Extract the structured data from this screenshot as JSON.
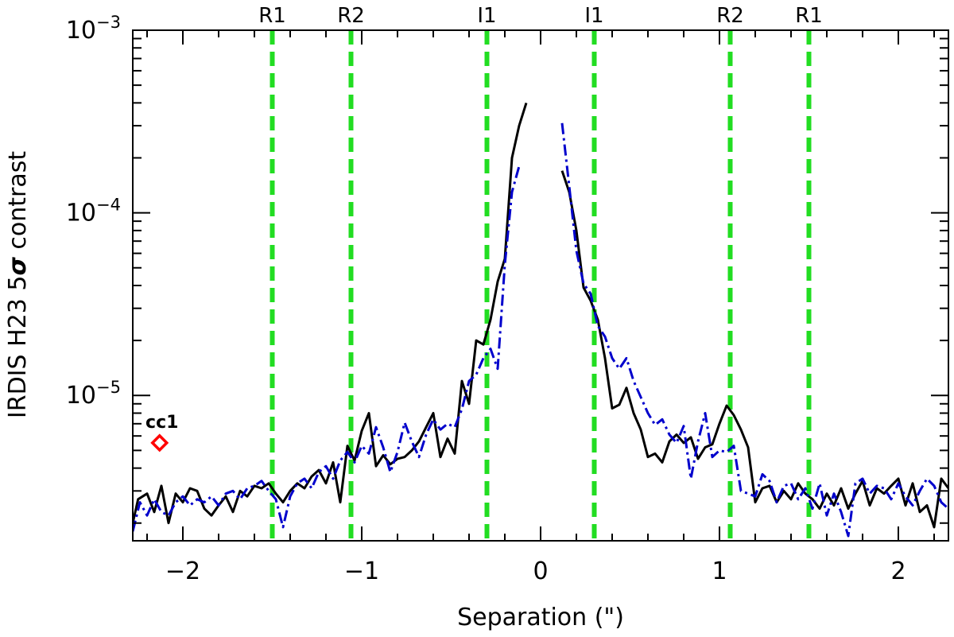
{
  "chart_data": {
    "type": "line",
    "title": "",
    "xlabel": "Separation (\")",
    "ylabel_parts": {
      "before": "IRDIS H23 5",
      "sigma": "σ",
      "after": " contrast"
    },
    "xlim": [
      -2.28,
      2.28
    ],
    "ylim": [
      1.6e-06,
      0.001
    ],
    "yscale": "log",
    "x_ticks": [
      -2,
      -1,
      0,
      1,
      2
    ],
    "x_tick_labels": [
      "−2",
      "−1",
      "0",
      "1",
      "2"
    ],
    "y_ticks": [
      {
        "value": 1e-05,
        "base": "10",
        "exp": "−5"
      },
      {
        "value": 0.0001,
        "base": "10",
        "exp": "−4"
      },
      {
        "value": 0.001,
        "base": "10",
        "exp": "−3"
      }
    ],
    "vertical_lines": [
      {
        "x": -1.5,
        "label": "R1"
      },
      {
        "x": -1.06,
        "label": "R2"
      },
      {
        "x": -0.3,
        "label": "I1"
      },
      {
        "x": 0.3,
        "label": "I1"
      },
      {
        "x": 1.06,
        "label": "R2"
      },
      {
        "x": 1.5,
        "label": "R1"
      }
    ],
    "vline_color": "#22dd22",
    "series": [
      {
        "style": "solid",
        "color": "#000000",
        "segments": [
          [
            [
              -2.28,
              2e-06
            ],
            [
              -2.25,
              2.7e-06
            ],
            [
              -2.2,
              2.9e-06
            ],
            [
              -2.16,
              2.3e-06
            ],
            [
              -2.12,
              3.2e-06
            ],
            [
              -2.08,
              2e-06
            ],
            [
              -2.04,
              2.9e-06
            ],
            [
              -2.0,
              2.6e-06
            ],
            [
              -1.96,
              3.1e-06
            ],
            [
              -1.92,
              3e-06
            ],
            [
              -1.88,
              2.4e-06
            ],
            [
              -1.84,
              2.2e-06
            ],
            [
              -1.8,
              2.5e-06
            ],
            [
              -1.76,
              2.8e-06
            ],
            [
              -1.72,
              2.3e-06
            ],
            [
              -1.68,
              3e-06
            ],
            [
              -1.64,
              2.8e-06
            ],
            [
              -1.6,
              3.2e-06
            ],
            [
              -1.56,
              3.1e-06
            ],
            [
              -1.52,
              3.3e-06
            ],
            [
              -1.48,
              2.9e-06
            ],
            [
              -1.44,
              2.6e-06
            ],
            [
              -1.4,
              3e-06
            ],
            [
              -1.36,
              3.3e-06
            ],
            [
              -1.32,
              3.1e-06
            ],
            [
              -1.28,
              3.6e-06
            ],
            [
              -1.24,
              3.9e-06
            ],
            [
              -1.2,
              3.3e-06
            ],
            [
              -1.16,
              4.3e-06
            ],
            [
              -1.12,
              2.6e-06
            ],
            [
              -1.08,
              5.3e-06
            ],
            [
              -1.04,
              4.4e-06
            ],
            [
              -1.0,
              6.4e-06
            ],
            [
              -0.96,
              8e-06
            ],
            [
              -0.92,
              4.1e-06
            ],
            [
              -0.88,
              4.7e-06
            ],
            [
              -0.84,
              4.2e-06
            ],
            [
              -0.8,
              4.5e-06
            ],
            [
              -0.76,
              4.6e-06
            ],
            [
              -0.72,
              5e-06
            ],
            [
              -0.68,
              5.6e-06
            ],
            [
              -0.64,
              6.7e-06
            ],
            [
              -0.6,
              8e-06
            ],
            [
              -0.56,
              4.6e-06
            ],
            [
              -0.52,
              5.8e-06
            ],
            [
              -0.48,
              4.8e-06
            ],
            [
              -0.44,
              1.2e-05
            ],
            [
              -0.4,
              9e-06
            ],
            [
              -0.36,
              2e-05
            ],
            [
              -0.32,
              1.9e-05
            ],
            [
              -0.28,
              2.6e-05
            ],
            [
              -0.24,
              4.2e-05
            ],
            [
              -0.2,
              5.6e-05
            ],
            [
              -0.16,
              0.0002
            ],
            [
              -0.12,
              0.0003
            ],
            [
              -0.08,
              0.0004
            ]
          ],
          [
            [
              0.12,
              0.00017
            ],
            [
              0.16,
              0.00013
            ],
            [
              0.2,
              8e-05
            ],
            [
              0.24,
              3.9e-05
            ],
            [
              0.28,
              3.3e-05
            ],
            [
              0.32,
              2.6e-05
            ],
            [
              0.36,
              1.6e-05
            ],
            [
              0.4,
              8.5e-06
            ],
            [
              0.44,
              8.9e-06
            ],
            [
              0.48,
              1.1e-05
            ],
            [
              0.52,
              8e-06
            ],
            [
              0.56,
              6.5e-06
            ],
            [
              0.6,
              4.6e-06
            ],
            [
              0.64,
              4.8e-06
            ],
            [
              0.68,
              4.3e-06
            ],
            [
              0.72,
              5.6e-06
            ],
            [
              0.76,
              6.1e-06
            ],
            [
              0.8,
              5.5e-06
            ],
            [
              0.84,
              5.9e-06
            ],
            [
              0.88,
              4.5e-06
            ],
            [
              0.92,
              5.2e-06
            ],
            [
              0.96,
              5.4e-06
            ],
            [
              1.0,
              7e-06
            ],
            [
              1.04,
              8.8e-06
            ],
            [
              1.08,
              7.8e-06
            ],
            [
              1.12,
              6.5e-06
            ],
            [
              1.16,
              5.2e-06
            ],
            [
              1.2,
              2.6e-06
            ],
            [
              1.24,
              3.1e-06
            ],
            [
              1.28,
              3.2e-06
            ],
            [
              1.32,
              2.6e-06
            ],
            [
              1.36,
              3e-06
            ],
            [
              1.4,
              2.7e-06
            ],
            [
              1.44,
              3.3e-06
            ],
            [
              1.48,
              2.9e-06
            ],
            [
              1.52,
              2.7e-06
            ],
            [
              1.56,
              2.4e-06
            ],
            [
              1.6,
              2.9e-06
            ],
            [
              1.64,
              2.5e-06
            ],
            [
              1.68,
              3.1e-06
            ],
            [
              1.72,
              2.4e-06
            ],
            [
              1.76,
              2.9e-06
            ],
            [
              1.8,
              3.4e-06
            ],
            [
              1.84,
              2.5e-06
            ],
            [
              1.88,
              3.1e-06
            ],
            [
              1.92,
              2.9e-06
            ],
            [
              1.96,
              3.2e-06
            ],
            [
              2.0,
              3.5e-06
            ],
            [
              2.04,
              2.5e-06
            ],
            [
              2.08,
              3.3e-06
            ],
            [
              2.12,
              2.3e-06
            ],
            [
              2.16,
              2.5e-06
            ],
            [
              2.2,
              1.9e-06
            ],
            [
              2.24,
              3.5e-06
            ],
            [
              2.28,
              3.1e-06
            ]
          ]
        ]
      },
      {
        "style": "dashdot",
        "color": "#0000cc",
        "segments": [
          [
            [
              -2.28,
              1.8e-06
            ],
            [
              -2.24,
              2.6e-06
            ],
            [
              -2.2,
              2.2e-06
            ],
            [
              -2.16,
              2.7e-06
            ],
            [
              -2.12,
              2.3e-06
            ],
            [
              -2.08,
              2.2e-06
            ],
            [
              -2.04,
              2.6e-06
            ],
            [
              -2.0,
              2.8e-06
            ],
            [
              -1.96,
              2.5e-06
            ],
            [
              -1.92,
              2.7e-06
            ],
            [
              -1.88,
              2.6e-06
            ],
            [
              -1.84,
              2.8e-06
            ],
            [
              -1.8,
              2.5e-06
            ],
            [
              -1.76,
              2.9e-06
            ],
            [
              -1.72,
              3e-06
            ],
            [
              -1.68,
              2.7e-06
            ],
            [
              -1.64,
              3.1e-06
            ],
            [
              -1.6,
              3.2e-06
            ],
            [
              -1.56,
              3.4e-06
            ],
            [
              -1.52,
              3e-06
            ],
            [
              -1.48,
              2.7e-06
            ],
            [
              -1.44,
              1.9e-06
            ],
            [
              -1.4,
              2.8e-06
            ],
            [
              -1.36,
              3.3e-06
            ],
            [
              -1.32,
              3.5e-06
            ],
            [
              -1.28,
              3.1e-06
            ],
            [
              -1.24,
              3.8e-06
            ],
            [
              -1.2,
              4.1e-06
            ],
            [
              -1.16,
              3.5e-06
            ],
            [
              -1.12,
              4.4e-06
            ],
            [
              -1.08,
              4.9e-06
            ],
            [
              -1.04,
              4.3e-06
            ],
            [
              -1.0,
              5.3e-06
            ],
            [
              -0.96,
              4.8e-06
            ],
            [
              -0.92,
              6.7e-06
            ],
            [
              -0.88,
              5.2e-06
            ],
            [
              -0.84,
              3.8e-06
            ],
            [
              -0.8,
              4.9e-06
            ],
            [
              -0.76,
              7.1e-06
            ],
            [
              -0.72,
              5.6e-06
            ],
            [
              -0.68,
              4.6e-06
            ],
            [
              -0.64,
              6.1e-06
            ],
            [
              -0.6,
              7.4e-06
            ],
            [
              -0.56,
              6.5e-06
            ],
            [
              -0.52,
              7e-06
            ],
            [
              -0.48,
              6.7e-06
            ],
            [
              -0.44,
              8.4e-06
            ],
            [
              -0.4,
              1.2e-05
            ],
            [
              -0.36,
              1.3e-05
            ],
            [
              -0.32,
              1.6e-05
            ],
            [
              -0.28,
              1.8e-05
            ],
            [
              -0.24,
              1.4e-05
            ],
            [
              -0.2,
              5.2e-05
            ],
            [
              -0.16,
              0.00013
            ],
            [
              -0.12,
              0.00018
            ]
          ],
          [
            [
              0.12,
              0.00031
            ],
            [
              0.16,
              0.00014
            ],
            [
              0.2,
              6.2e-05
            ],
            [
              0.24,
              4.1e-05
            ],
            [
              0.28,
              3.6e-05
            ],
            [
              0.32,
              2.4e-05
            ],
            [
              0.36,
              2.1e-05
            ],
            [
              0.4,
              1.6e-05
            ],
            [
              0.44,
              1.4e-05
            ],
            [
              0.48,
              1.6e-05
            ],
            [
              0.52,
              1.2e-05
            ],
            [
              0.56,
              9.8e-06
            ],
            [
              0.6,
              8e-06
            ],
            [
              0.64,
              6.9e-06
            ],
            [
              0.68,
              7.4e-06
            ],
            [
              0.72,
              6.1e-06
            ],
            [
              0.76,
              5.5e-06
            ],
            [
              0.8,
              6.8e-06
            ],
            [
              0.84,
              3.5e-06
            ],
            [
              0.88,
              5.6e-06
            ],
            [
              0.92,
              8e-06
            ],
            [
              0.96,
              4.6e-06
            ],
            [
              1.0,
              5e-06
            ],
            [
              1.04,
              4.9e-06
            ],
            [
              1.08,
              5.3e-06
            ],
            [
              1.12,
              3e-06
            ],
            [
              1.16,
              2.9e-06
            ],
            [
              1.2,
              2.8e-06
            ],
            [
              1.24,
              3.7e-06
            ],
            [
              1.28,
              3.4e-06
            ],
            [
              1.32,
              2.6e-06
            ],
            [
              1.36,
              3.2e-06
            ],
            [
              1.4,
              3.3e-06
            ],
            [
              1.44,
              2.7e-06
            ],
            [
              1.48,
              3.1e-06
            ],
            [
              1.52,
              2.4e-06
            ],
            [
              1.56,
              3.3e-06
            ],
            [
              1.6,
              2.2e-06
            ],
            [
              1.64,
              2.9e-06
            ],
            [
              1.68,
              2.3e-06
            ],
            [
              1.72,
              1.7e-06
            ],
            [
              1.76,
              3.3e-06
            ],
            [
              1.8,
              3.5e-06
            ],
            [
              1.84,
              2.9e-06
            ],
            [
              1.88,
              3.2e-06
            ],
            [
              1.92,
              3.1e-06
            ],
            [
              1.96,
              2.7e-06
            ],
            [
              2.0,
              3.3e-06
            ],
            [
              2.04,
              2.8e-06
            ],
            [
              2.08,
              2.5e-06
            ],
            [
              2.12,
              3e-06
            ],
            [
              2.16,
              3.5e-06
            ],
            [
              2.2,
              3.2e-06
            ],
            [
              2.24,
              2.6e-06
            ],
            [
              2.28,
              2.4e-06
            ]
          ]
        ]
      }
    ],
    "markers": [
      {
        "x": -2.13,
        "y": 5.5e-06,
        "label": "cc1",
        "color": "#ff0000",
        "shape": "diamond"
      }
    ]
  }
}
